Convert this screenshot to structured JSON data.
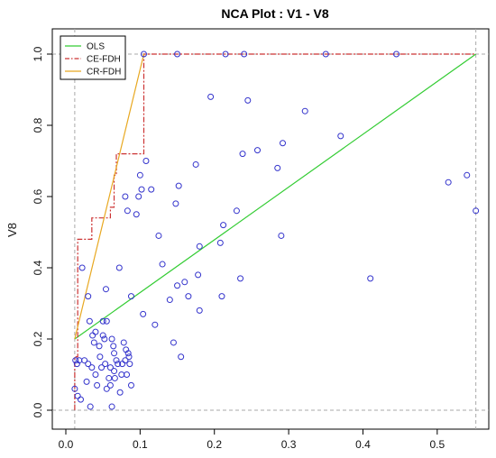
{
  "chart_data": {
    "type": "scatter",
    "title": "NCA Plot : V1 - V8",
    "xlabel": "",
    "ylabel": "V8",
    "xlim": [
      0.0,
      0.55
    ],
    "ylim": [
      0.0,
      1.0
    ],
    "x_ticks": [
      "0.0",
      "0.1",
      "0.2",
      "0.3",
      "0.4",
      "0.5"
    ],
    "y_ticks": [
      "0.0",
      "0.2",
      "0.4",
      "0.6",
      "0.8",
      "1.0"
    ],
    "point_color": "#3333cc",
    "points": [
      [
        0.012,
        0.06
      ],
      [
        0.013,
        0.14
      ],
      [
        0.015,
        0.13
      ],
      [
        0.016,
        0.04
      ],
      [
        0.018,
        0.14
      ],
      [
        0.02,
        0.03
      ],
      [
        0.022,
        0.4
      ],
      [
        0.025,
        0.14
      ],
      [
        0.028,
        0.08
      ],
      [
        0.03,
        0.13
      ],
      [
        0.03,
        0.32
      ],
      [
        0.032,
        0.25
      ],
      [
        0.033,
        0.01
      ],
      [
        0.035,
        0.12
      ],
      [
        0.036,
        0.21
      ],
      [
        0.038,
        0.19
      ],
      [
        0.04,
        0.22
      ],
      [
        0.04,
        0.1
      ],
      [
        0.042,
        0.07
      ],
      [
        0.045,
        0.18
      ],
      [
        0.046,
        0.15
      ],
      [
        0.048,
        0.12
      ],
      [
        0.05,
        0.21
      ],
      [
        0.05,
        0.25
      ],
      [
        0.052,
        0.2
      ],
      [
        0.053,
        0.13
      ],
      [
        0.054,
        0.34
      ],
      [
        0.055,
        0.06
      ],
      [
        0.055,
        0.25
      ],
      [
        0.058,
        0.09
      ],
      [
        0.06,
        0.12
      ],
      [
        0.06,
        0.07
      ],
      [
        0.062,
        0.01
      ],
      [
        0.062,
        0.2
      ],
      [
        0.064,
        0.18
      ],
      [
        0.065,
        0.11
      ],
      [
        0.065,
        0.16
      ],
      [
        0.066,
        0.09
      ],
      [
        0.068,
        0.14
      ],
      [
        0.07,
        0.13
      ],
      [
        0.072,
        0.4
      ],
      [
        0.073,
        0.05
      ],
      [
        0.075,
        0.1
      ],
      [
        0.076,
        0.13
      ],
      [
        0.078,
        0.19
      ],
      [
        0.08,
        0.14
      ],
      [
        0.081,
        0.17
      ],
      [
        0.082,
        0.1
      ],
      [
        0.084,
        0.16
      ],
      [
        0.085,
        0.15
      ],
      [
        0.086,
        0.13
      ],
      [
        0.088,
        0.07
      ],
      [
        0.088,
        0.32
      ],
      [
        0.08,
        0.6
      ],
      [
        0.083,
        0.56
      ],
      [
        0.095,
        0.55
      ],
      [
        0.098,
        0.6
      ],
      [
        0.1,
        0.66
      ],
      [
        0.102,
        0.62
      ],
      [
        0.104,
        0.27
      ],
      [
        0.108,
        0.7
      ],
      [
        0.115,
        0.62
      ],
      [
        0.12,
        0.24
      ],
      [
        0.125,
        0.49
      ],
      [
        0.13,
        0.41
      ],
      [
        0.14,
        0.31
      ],
      [
        0.145,
        0.19
      ],
      [
        0.148,
        0.58
      ],
      [
        0.15,
        0.35
      ],
      [
        0.152,
        0.63
      ],
      [
        0.155,
        0.15
      ],
      [
        0.16,
        0.36
      ],
      [
        0.165,
        0.32
      ],
      [
        0.175,
        0.69
      ],
      [
        0.178,
        0.38
      ],
      [
        0.18,
        0.28
      ],
      [
        0.18,
        0.46
      ],
      [
        0.195,
        0.88
      ],
      [
        0.208,
        0.47
      ],
      [
        0.21,
        0.32
      ],
      [
        0.212,
        0.52
      ],
      [
        0.23,
        0.56
      ],
      [
        0.235,
        0.37
      ],
      [
        0.238,
        0.72
      ],
      [
        0.245,
        0.87
      ],
      [
        0.258,
        0.73
      ],
      [
        0.285,
        0.68
      ],
      [
        0.29,
        0.49
      ],
      [
        0.292,
        0.75
      ],
      [
        0.322,
        0.84
      ],
      [
        0.37,
        0.77
      ],
      [
        0.41,
        0.37
      ],
      [
        0.515,
        0.64
      ],
      [
        0.54,
        0.66
      ],
      [
        0.552,
        0.56
      ],
      [
        0.15,
        1.0
      ],
      [
        0.215,
        1.0
      ],
      [
        0.24,
        1.0
      ],
      [
        0.35,
        1.0
      ],
      [
        0.445,
        1.0
      ],
      [
        0.105,
        1.0
      ]
    ],
    "series": [
      {
        "name": "OLS",
        "color": "#33cc33",
        "style": "solid",
        "points": [
          [
            0.012,
            0.2
          ],
          [
            0.552,
            1.0
          ]
        ]
      },
      {
        "name": "CE-FDH",
        "color": "#cc3333",
        "style": "dashdot",
        "points": [
          [
            0.012,
            0.0
          ],
          [
            0.012,
            0.15
          ],
          [
            0.016,
            0.15
          ],
          [
            0.016,
            0.48
          ],
          [
            0.035,
            0.48
          ],
          [
            0.035,
            0.54
          ],
          [
            0.06,
            0.54
          ],
          [
            0.06,
            0.57
          ],
          [
            0.065,
            0.57
          ],
          [
            0.065,
            0.66
          ],
          [
            0.068,
            0.66
          ],
          [
            0.068,
            0.72
          ],
          [
            0.105,
            0.72
          ],
          [
            0.105,
            1.0
          ],
          [
            0.552,
            1.0
          ]
        ]
      },
      {
        "name": "CR-FDH",
        "color": "#e8a820",
        "style": "solid",
        "points": [
          [
            0.012,
            0.2
          ],
          [
            0.105,
            1.0
          ]
        ]
      }
    ],
    "scope_lines": {
      "x_min": 0.012,
      "x_max": 0.552,
      "y_min": 0.0,
      "y_max": 1.0
    },
    "legend_position": "top-left",
    "grid": false
  }
}
